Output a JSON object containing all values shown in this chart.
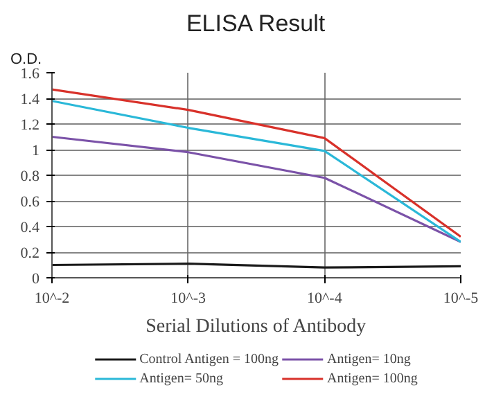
{
  "chart_data": {
    "type": "line",
    "title": "ELISA Result",
    "ylabel": "O.D.",
    "xlabel": "Serial Dilutions of Antibody",
    "categories": [
      "10^-2",
      "10^-3",
      "10^-4",
      "10^-5"
    ],
    "series": [
      {
        "name": "Control Antigen = 100ng",
        "color": "#1a1a1a",
        "values": [
          0.1,
          0.11,
          0.08,
          0.09
        ]
      },
      {
        "name": "Antigen= 10ng",
        "color": "#7b52a8",
        "values": [
          1.1,
          0.98,
          0.78,
          0.28
        ]
      },
      {
        "name": "Antigen= 50ng",
        "color": "#2ab8d8",
        "values": [
          1.38,
          1.17,
          0.99,
          0.28
        ]
      },
      {
        "name": "Antigen= 100ng",
        "color": "#d8312a",
        "values": [
          1.47,
          1.31,
          1.09,
          0.32
        ]
      }
    ],
    "ylim": [
      0,
      1.6
    ],
    "yticks": [
      0,
      0.2,
      0.4,
      0.6,
      0.8,
      1,
      1.2,
      1.4,
      1.6
    ],
    "grid": true,
    "legend": "bottom",
    "marker": "none",
    "line_style": "solid"
  }
}
